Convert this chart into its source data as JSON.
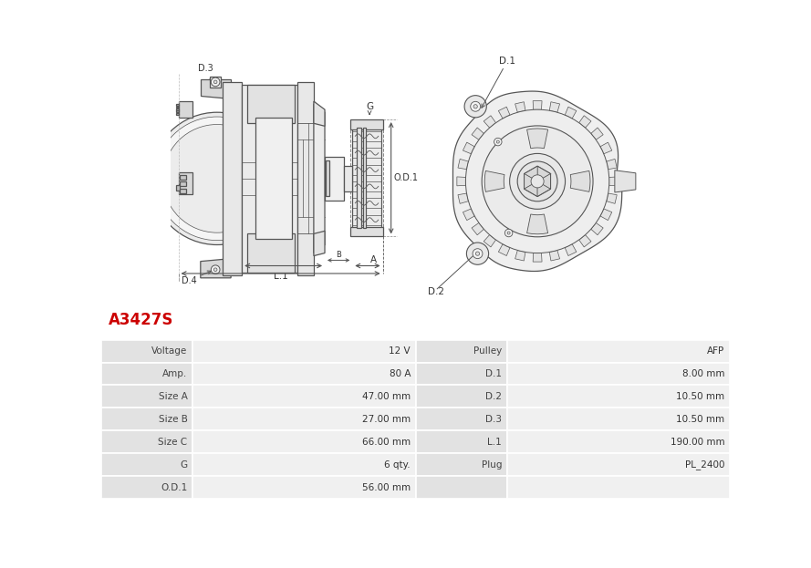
{
  "title": "A3427S",
  "title_color": "#cc0000",
  "bg_color": "#ffffff",
  "table_row_bg_dark": "#e2e2e2",
  "table_row_bg_light": "#f0f0f0",
  "table_border_color": "#ffffff",
  "line_color": "#555555",
  "fill_light": "#f0f0f0",
  "fill_mid": "#e0e0e0",
  "fill_dark": "#c8c8c8",
  "rows_left": [
    [
      "Voltage",
      "12 V"
    ],
    [
      "Amp.",
      "80 A"
    ],
    [
      "Size A",
      "47.00 mm"
    ],
    [
      "Size B",
      "27.00 mm"
    ],
    [
      "Size C",
      "66.00 mm"
    ],
    [
      "G",
      "6 qty."
    ],
    [
      "O.D.1",
      "56.00 mm"
    ]
  ],
  "rows_right": [
    [
      "Pulley",
      "AFP"
    ],
    [
      "D.1",
      "8.00 mm"
    ],
    [
      "D.2",
      "10.50 mm"
    ],
    [
      "D.3",
      "10.50 mm"
    ],
    [
      "L.1",
      "190.00 mm"
    ],
    [
      "Plug",
      "PL_2400"
    ],
    [
      "",
      ""
    ]
  ],
  "label_fontsize": 7.5,
  "title_fontsize": 12
}
